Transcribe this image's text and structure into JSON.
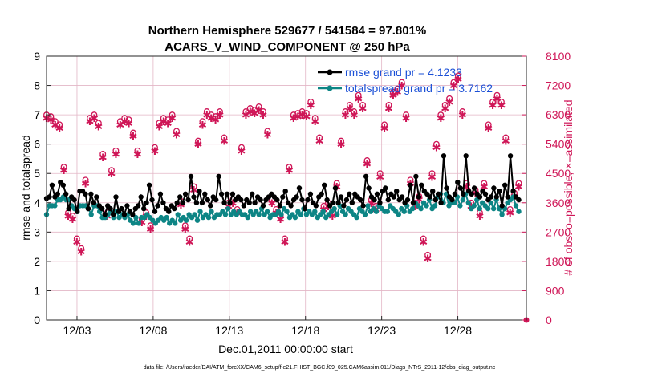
{
  "colors": {
    "rmse": "#000000",
    "spread": "#0d8585",
    "obs": "#cf1657",
    "legend_text": "#1a4fd6",
    "grid": "#e3b6c6"
  },
  "chart_data": {
    "type": "line",
    "title": "Northern Hemisphere 529677 / 541584 = 97.801%",
    "subtitle": "ACARS_V_WIND_COMPONENT @ 250 hPa",
    "xlabel": "Dec.01,2011 00:00:00 start",
    "ylabel": "rmse and totalspread",
    "y2label": "# of obs: o=possible; ×=assimilated",
    "xlim": [
      1,
      32.5
    ],
    "ylim": [
      0,
      9
    ],
    "y2lim": [
      0,
      8100
    ],
    "xticks": [
      3,
      8,
      13,
      18,
      23,
      28
    ],
    "xtick_labels": [
      "12/03",
      "12/08",
      "12/13",
      "12/18",
      "12/23",
      "12/28"
    ],
    "yticks": [
      "0",
      "1",
      "2",
      "3",
      "4",
      "5",
      "6",
      "7",
      "8",
      "9"
    ],
    "y2ticks": [
      "0",
      "900",
      "1800",
      "2700",
      "3600",
      "4500",
      "5400",
      "6300",
      "7200",
      "8100"
    ],
    "legend": [
      {
        "name": "rmse grand pr = 4.1233",
        "color": "#000000"
      },
      {
        "name": "totalspread grand pr = 3.7162",
        "color": "#0d8585"
      }
    ],
    "rmse": [
      4.15,
      4.2,
      4.6,
      4.2,
      4.3,
      4.7,
      4.6,
      4.3,
      3.8,
      4.2,
      4.1,
      3.7,
      4.4,
      4.4,
      4.3,
      3.8,
      4.3,
      4.0,
      4.2,
      3.9,
      3.8,
      3.6,
      3.9,
      3.8,
      3.6,
      4.2,
      3.7,
      3.8,
      3.6,
      3.9,
      3.7,
      3.6,
      3.8,
      3.9,
      4.2,
      3.8,
      4.0,
      4.6,
      4.1,
      3.7,
      3.9,
      4.3,
      4.0,
      3.8,
      3.7,
      3.9,
      3.8,
      4.0,
      4.2,
      4.0,
      4.3,
      4.1,
      4.9,
      4.2,
      4.0,
      4.4,
      4.0,
      4.3,
      4.1,
      3.9,
      4.2,
      4.1,
      4.9,
      4.3,
      4.0,
      4.3,
      4.0,
      4.3,
      4.1,
      4.2,
      4.1,
      3.9,
      4.1,
      4.0,
      4.3,
      4.0,
      4.2,
      4.1,
      3.9,
      4.1,
      4.2,
      4.3,
      4.2,
      4.1,
      3.9,
      4.2,
      4.4,
      4.0,
      3.9,
      4.1,
      4.2,
      4.5,
      4.1,
      3.8,
      4.1,
      4.3,
      4.0,
      3.9,
      4.2,
      4.3,
      4.6,
      4.1,
      3.9,
      4.0,
      4.5,
      4.0,
      4.2,
      3.9,
      4.1,
      4.3,
      4.0,
      4.3,
      4.2,
      4.1,
      3.9,
      4.9,
      4.5,
      4.2,
      4.1,
      4.3,
      4.0,
      4.4,
      4.5,
      4.1,
      4.3,
      4.2,
      4.4,
      4.1,
      4.2,
      4.0,
      4.1,
      4.6,
      4.0,
      4.9,
      4.2,
      4.6,
      4.4,
      4.3,
      4.2,
      4.4,
      4.1,
      4.3,
      4.0,
      5.6,
      4.5,
      4.2,
      4.1,
      4.3,
      4.7,
      4.5,
      4.3,
      5.6,
      4.4,
      4.3,
      4.5,
      4.3,
      4.2,
      4.4,
      4.3,
      4.1,
      4.2,
      4.5,
      4.2,
      4.4,
      3.9,
      4.6,
      4.2,
      5.6,
      4.4,
      4.2,
      4.1
    ],
    "spread": [
      3.6,
      3.9,
      3.9,
      3.9,
      4.1,
      4.1,
      4.2,
      4.1,
      4.1,
      3.9,
      3.8,
      3.7,
      3.9,
      3.9,
      3.9,
      3.8,
      3.6,
      3.9,
      3.9,
      3.7,
      3.5,
      3.5,
      3.6,
      3.7,
      3.5,
      3.7,
      3.5,
      3.6,
      3.5,
      3.6,
      3.4,
      3.3,
      3.5,
      3.3,
      3.5,
      3.5,
      3.6,
      3.5,
      3.4,
      3.3,
      3.4,
      3.5,
      3.4,
      3.5,
      3.3,
      3.4,
      3.3,
      3.6,
      3.4,
      3.5,
      3.4,
      3.6,
      3.5,
      3.6,
      3.4,
      3.7,
      3.5,
      3.6,
      3.5,
      3.7,
      3.5,
      3.6,
      3.6,
      3.7,
      3.6,
      3.8,
      3.6,
      3.7,
      3.6,
      3.7,
      3.6,
      3.6,
      3.5,
      3.7,
      3.6,
      3.7,
      3.6,
      3.8,
      3.6,
      3.7,
      3.5,
      3.6,
      3.6,
      3.7,
      3.6,
      3.8,
      3.7,
      3.5,
      3.6,
      3.5,
      3.7,
      3.6,
      3.8,
      3.6,
      3.7,
      3.6,
      3.7,
      3.5,
      3.6,
      3.7,
      3.5,
      3.6,
      3.7,
      3.8,
      3.6,
      3.9,
      3.7,
      3.6,
      3.8,
      3.7,
      3.6,
      3.5,
      3.8,
      3.7,
      3.6,
      3.9,
      3.7,
      3.8,
      3.7,
      3.9,
      3.8,
      3.7,
      3.7,
      3.9,
      3.8,
      3.7,
      3.6,
      3.8,
      3.7,
      3.9,
      3.7,
      3.8,
      4.0,
      3.9,
      3.8,
      4.0,
      3.9,
      4.1,
      3.8,
      3.9,
      4.2,
      4.3,
      4.0,
      4.3,
      3.9,
      4.0,
      4.0,
      4.2,
      3.9,
      4.1,
      4.3,
      4.0,
      3.8,
      3.9,
      4.1,
      3.8,
      4.0,
      3.9,
      3.8,
      4.0,
      3.8,
      4.1,
      3.8,
      3.6,
      3.8,
      4.0,
      4.1,
      4.2,
      3.9,
      3.7
    ],
    "obs_possible": [
      6300,
      6250,
      6100,
      6000,
      4700,
      3300,
      3200,
      2500,
      2200,
      4300,
      6200,
      6300,
      6050,
      5100,
      3300,
      4600,
      5200,
      6100,
      6200,
      6150,
      5750,
      5200,
      3100,
      3300,
      2900,
      5300,
      6050,
      6200,
      6150,
      6300,
      5800,
      3650,
      2900,
      2500,
      4100,
      5500,
      6100,
      6400,
      6300,
      6250,
      6400,
      5600,
      3600,
      3700,
      3400,
      5300,
      6400,
      6500,
      6450,
      6550,
      6400,
      5800,
      3700,
      3400,
      3200,
      2500,
      4700,
      6300,
      6350,
      6400,
      6350,
      6700,
      6200,
      5600,
      3500,
      3600,
      3300,
      4200,
      5500,
      6400,
      6600,
      6400,
      6900,
      6600,
      4900,
      3700,
      3500,
      4500,
      6000,
      6600,
      7000,
      7100,
      7300,
      6300,
      4300,
      3600,
      3800,
      2500,
      2000,
      4500,
      5400,
      6300,
      6600,
      6800,
      7300,
      7500,
      6400,
      4200,
      3600,
      4000,
      3300,
      4200,
      6000,
      6700,
      6900,
      6700,
      5600,
      3400,
      3900,
      4200
    ],
    "obs_assimilated": [
      6200,
      6150,
      6000,
      5900,
      4600,
      3200,
      3100,
      2400,
      2100,
      4200,
      6100,
      6200,
      5950,
      5000,
      3200,
      4500,
      5100,
      6000,
      6100,
      6050,
      5650,
      5100,
      3000,
      3200,
      2800,
      5200,
      5950,
      6100,
      6050,
      6200,
      5700,
      3550,
      2800,
      2400,
      4000,
      5400,
      6000,
      6300,
      6200,
      6150,
      6300,
      5500,
      3500,
      3600,
      3300,
      5200,
      6300,
      6400,
      6350,
      6450,
      6300,
      5700,
      3600,
      3300,
      3100,
      2400,
      4600,
      6200,
      6250,
      6300,
      6250,
      6600,
      6100,
      5500,
      3400,
      3500,
      3200,
      4100,
      5400,
      6300,
      6500,
      6300,
      6800,
      6500,
      4800,
      3600,
      3400,
      4400,
      5900,
      6500,
      6900,
      7000,
      7200,
      6200,
      4200,
      3500,
      3700,
      2400,
      1900,
      4400,
      5300,
      6200,
      6500,
      6700,
      7200,
      7400,
      6300,
      4100,
      3500,
      3900,
      3200,
      4100,
      5900,
      6600,
      6800,
      6600,
      5500,
      3300,
      3800,
      4100
    ],
    "footnote": "data file: /Users/raeder/DAI/ATM_forcXX/CAM6_setup/f.e21.FHIST_BGC.f09_025.CAM6assim.011/Diags_NTrS_2011-12/obs_diag_output.nc"
  }
}
